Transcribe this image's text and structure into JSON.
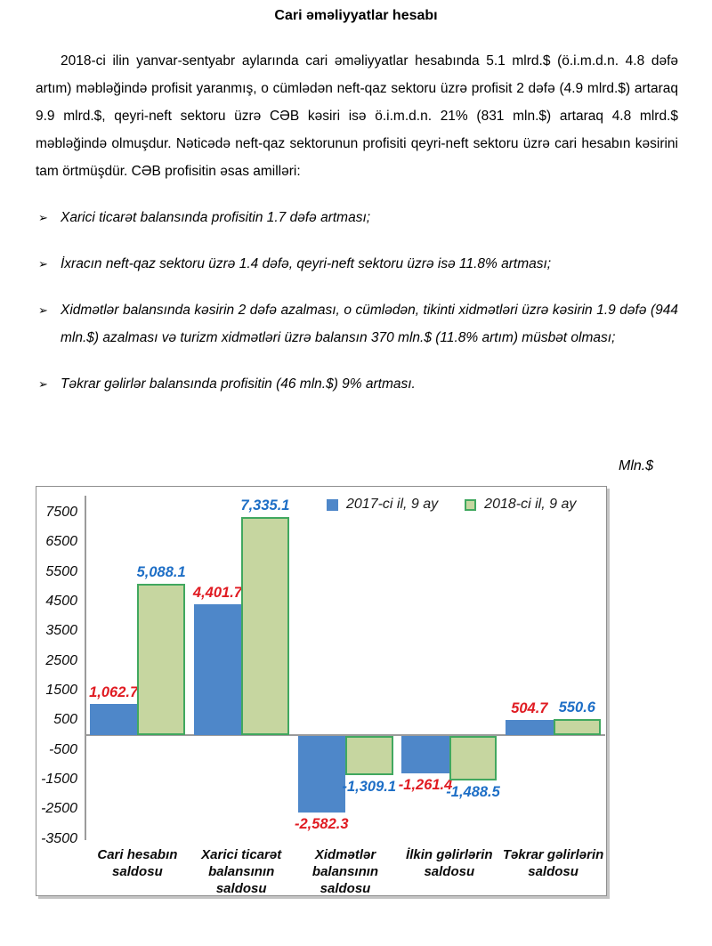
{
  "title": "Cari əməliyyatlar hesabı",
  "paragraph": "2018-ci ilin yanvar-sentyabr aylarında cari əməliyyatlar hesabında 5.1 mlrd.$ (ö.i.m.d.n. 4.8 dəfə artım) məbləğində profisit yaranmış, o cümlədən neft-qaz sektoru üzrə profisit 2 dəfə (4.9 mlrd.$) artaraq 9.9 mlrd.$, qeyri-neft sektoru üzrə CƏB kəsiri isə ö.i.m.d.n. 21% (831 mln.$) artaraq 4.8 mlrd.$ məbləğində olmuşdur. Nəticədə neft-qaz sektorunun profisiti qeyri-neft sektoru üzrə cari hesabın kəsirini tam örtmüşdür. CƏB profisitin əsas amilləri:",
  "bullet_marker": "➢",
  "bullets": [
    "Xarici ticarət balansında profisitin 1.7 dəfə artması;",
    "İxracın neft-qaz sektoru üzrə 1.4 dəfə, qeyri-neft sektoru üzrə isə 11.8% artması;",
    "Xidmətlər balansında kəsirin 2 dəfə azalması, o cümlədən, tikinti xidmətləri üzrə kəsirin 1.9 dəfə (944 mln.$) azalması və turizm xidmətləri üzrə balansın 370 mln.$ (11.8% artım) müsbət olması;",
    "Təkrar gəlirlər balansında profisitin (46 mln.$) 9% artması."
  ],
  "chart_data": {
    "type": "bar",
    "unit": "Mln.$",
    "categories": [
      "Cari hesabın\nsaldosu",
      "Xarici ticarət\nbalansının\nsaldosu",
      "Xidmətlər\nbalansının\nsaldosu",
      "İlkin gəlirlərin\nsaldosu",
      "Təkrar gəlirlərin\nsaldosu"
    ],
    "series": [
      {
        "name": "2017-ci il, 9 ay",
        "values": [
          1062.7,
          4401.7,
          -2582.3,
          -1261.4,
          504.7
        ],
        "labels": [
          "1,062.7",
          "4,401.7",
          "-2,582.3",
          "-1,261.4",
          "504.7"
        ],
        "bar_color": "#4e87c9",
        "label_color": "#e01b22"
      },
      {
        "name": "2018-ci il, 9 ay",
        "values": [
          5088.1,
          7335.1,
          -1309.1,
          -1488.5,
          550.6
        ],
        "labels": [
          "5,088.1",
          "7,335.1",
          "-1,309.1",
          "-1,488.5",
          "550.6"
        ],
        "bar_color": "#c6d6a0",
        "bar_border": "#41a85f",
        "label_color": "#1d6ec6"
      }
    ],
    "yticks": [
      7500,
      6500,
      5500,
      4500,
      3500,
      2500,
      1500,
      500,
      -500,
      -1500,
      -2500,
      -3500
    ],
    "ylim": [
      -3530,
      8070
    ],
    "grid": false,
    "legend_position": "top-right",
    "axis_color": "#9b9b9b"
  }
}
